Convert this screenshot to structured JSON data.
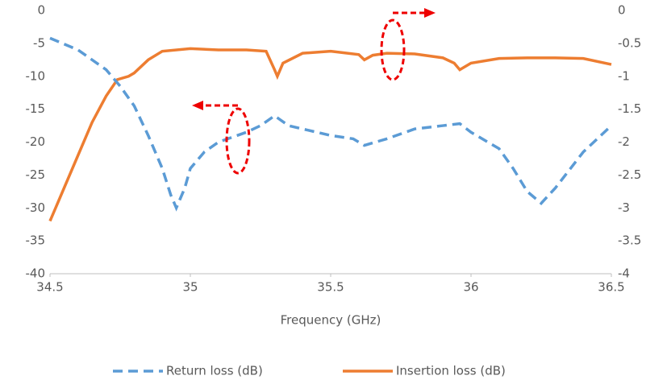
{
  "chart_data": {
    "type": "line",
    "xlabel": "Frequency (GHz)",
    "xlim": [
      34.5,
      36.5
    ],
    "xticks": [
      34.5,
      35,
      35.5,
      36,
      36.5
    ],
    "ylim": [
      -40,
      0
    ],
    "yticks": [
      0,
      -5,
      -10,
      -15,
      -20,
      -25,
      -30,
      -35,
      -40
    ],
    "y2lim": [
      -4,
      0
    ],
    "y2ticks": [
      0,
      -0.5,
      -1,
      -1.5,
      -2,
      -2.5,
      -3,
      -3.5,
      -4
    ],
    "grid": false,
    "legend": "bottom",
    "series": [
      {
        "name": "Return loss (dB)",
        "color": "#5b9bd5",
        "dash": true,
        "x": [
          34.5,
          34.6,
          34.7,
          34.75,
          34.8,
          34.85,
          34.9,
          34.93,
          34.95,
          34.98,
          35.0,
          35.05,
          35.1,
          35.2,
          35.25,
          35.3,
          35.35,
          35.4,
          35.5,
          35.58,
          35.62,
          35.7,
          35.8,
          35.9,
          35.96,
          36.0,
          36.1,
          36.15,
          36.2,
          36.25,
          36.3,
          36.4,
          36.5
        ],
        "values": [
          -4.2,
          -6,
          -9,
          -11.5,
          -14.5,
          -19,
          -24,
          -28,
          -30,
          -27,
          -24,
          -21.5,
          -20,
          -18.5,
          -17.5,
          -16,
          -17.5,
          -18,
          -19,
          -19.5,
          -20.5,
          -19.5,
          -18,
          -17.5,
          -17.2,
          -18.5,
          -21,
          -24,
          -27.5,
          -29.3,
          -27,
          -21.5,
          -17.5
        ]
      },
      {
        "name": "Insertion loss (dB)",
        "color": "#ed7d31",
        "axis": "y2",
        "dash": false,
        "x": [
          34.5,
          34.52,
          34.55,
          34.6,
          34.65,
          34.7,
          34.74,
          34.78,
          34.8,
          34.85,
          34.9,
          35.0,
          35.1,
          35.2,
          35.27,
          35.3,
          35.31,
          35.33,
          35.4,
          35.5,
          35.6,
          35.62,
          35.65,
          35.7,
          35.8,
          35.9,
          35.94,
          35.96,
          36.0,
          36.1,
          36.2,
          36.3,
          36.4,
          36.5
        ],
        "values": [
          -3.2,
          -3.0,
          -2.7,
          -2.2,
          -1.7,
          -1.3,
          -1.05,
          -1.0,
          -0.95,
          -0.75,
          -0.62,
          -0.58,
          -0.6,
          -0.6,
          -0.62,
          -0.9,
          -1.0,
          -0.8,
          -0.65,
          -0.62,
          -0.67,
          -0.75,
          -0.68,
          -0.65,
          -0.66,
          -0.72,
          -0.8,
          -0.9,
          -0.8,
          -0.73,
          -0.72,
          -0.72,
          -0.73,
          -0.82
        ]
      }
    ]
  }
}
